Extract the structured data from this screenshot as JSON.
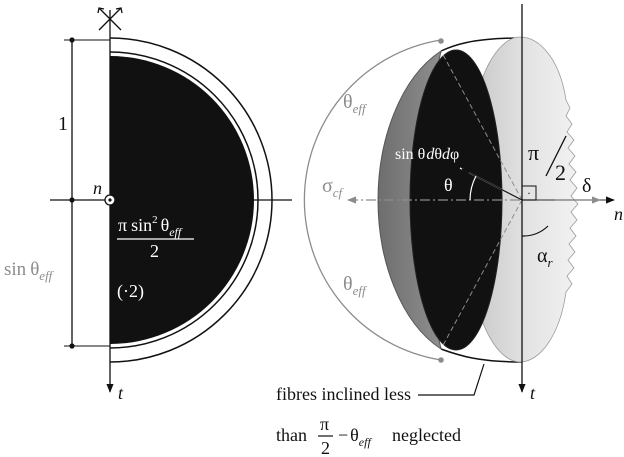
{
  "left": {
    "label_one": "1",
    "n": "n",
    "t": "t",
    "sin": "sin",
    "theta": "θ",
    "eff": "eff",
    "pi": "π",
    "sq": "2",
    "den": "2",
    "times2": "(·2)"
  },
  "right": {
    "theta": "θ",
    "eff": "eff",
    "sigma": "σ",
    "cf": "cf",
    "delta": "δ",
    "n": "n",
    "t": "t",
    "alpha": "α",
    "r": "r",
    "pi": "π",
    "two": "2",
    "element_sin": "sin θ",
    "element_d1": "d",
    "element_theta": "θ",
    "element_d2": "d",
    "element_phi": "φ",
    "dot": "·"
  },
  "caption": {
    "line1": "fibres inclined less",
    "than": "than",
    "pi": "π",
    "den": "2",
    "minus": "−",
    "theta": "θ",
    "eff": "eff",
    "neglected": "neglected"
  },
  "colors": {
    "black": "#111111",
    "gray_text": "#8c8c8c",
    "mid_gray": "#808080",
    "light_gray": "#d8d8d8"
  }
}
